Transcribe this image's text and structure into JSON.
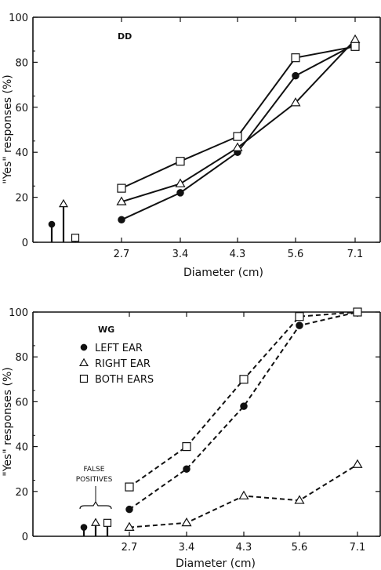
{
  "chart_data": [
    {
      "type": "line",
      "panel_label": "DD",
      "xlabel": "Diameter (cm)",
      "ylabel": "\"Yes\" responses (%)",
      "categories": [
        "2.7",
        "3.4",
        "4.3",
        "5.6",
        "7.1"
      ],
      "yticks": [
        "0",
        "20",
        "40",
        "60",
        "80",
        "100"
      ],
      "ylim": [
        0,
        100
      ],
      "line_style": "solid",
      "series": [
        {
          "marker": "circle-filled",
          "values": [
            10,
            22,
            40,
            74,
            88
          ]
        },
        {
          "marker": "triangle-open",
          "values": [
            18,
            26,
            42,
            62,
            90
          ]
        },
        {
          "marker": "square-open",
          "values": [
            24,
            36,
            47,
            82,
            87
          ]
        }
      ],
      "false_positives": [
        {
          "marker": "circle-filled",
          "value": 8
        },
        {
          "marker": "triangle-open",
          "value": 17
        },
        {
          "marker": "square-open",
          "value": 2
        }
      ]
    },
    {
      "type": "line",
      "panel_label": "WG",
      "xlabel": "Diameter (cm)",
      "ylabel": "\"Yes\" responses (%)",
      "categories": [
        "2.7",
        "3.4",
        "4.3",
        "5.6",
        "7.1"
      ],
      "yticks": [
        "0",
        "20",
        "40",
        "60",
        "80",
        "100"
      ],
      "ylim": [
        0,
        100
      ],
      "line_style": "dashed",
      "legend": [
        {
          "marker": "circle-filled",
          "label": "LEFT EAR"
        },
        {
          "marker": "triangle-open",
          "label": "RIGHT EAR"
        },
        {
          "marker": "square-open",
          "label": "BOTH EARS"
        }
      ],
      "series": [
        {
          "name": "LEFT EAR",
          "marker": "circle-filled",
          "values": [
            12,
            30,
            58,
            94,
            100
          ]
        },
        {
          "name": "RIGHT EAR",
          "marker": "triangle-open",
          "values": [
            4,
            6,
            18,
            16,
            32
          ]
        },
        {
          "name": "BOTH EARS",
          "marker": "square-open",
          "values": [
            22,
            40,
            70,
            98,
            100
          ]
        }
      ],
      "false_positives_label": "FALSE POSITIVES",
      "false_positives": [
        {
          "marker": "circle-filled",
          "value": 4
        },
        {
          "marker": "triangle-open",
          "value": 6
        },
        {
          "marker": "square-open",
          "value": 6
        }
      ]
    }
  ]
}
